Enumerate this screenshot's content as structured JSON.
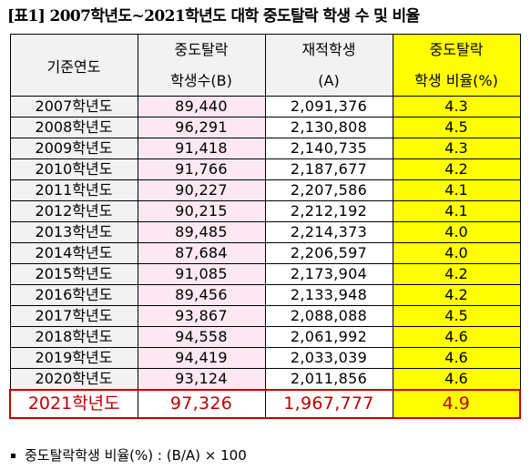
{
  "title": "[표1] 2007학년도~2021학년도 대학 중도탈락 학생 수 및 비율",
  "headers": {
    "year": "기준연도",
    "dropout_top": "중도탈락",
    "dropout_bottom": "학생수(B)",
    "enrolled_top": "재적학생",
    "enrolled_bottom": "(A)",
    "ratio_top": "중도탈락",
    "ratio_bottom": "학생 비율(%)"
  },
  "rows": [
    {
      "year": "2007학년도",
      "dropout": "89,440",
      "enrolled": "2,091,376",
      "ratio": "4.3"
    },
    {
      "year": "2008학년도",
      "dropout": "96,291",
      "enrolled": "2,130,808",
      "ratio": "4.5"
    },
    {
      "year": "2009학년도",
      "dropout": "91,418",
      "enrolled": "2,140,735",
      "ratio": "4.3"
    },
    {
      "year": "2010학년도",
      "dropout": "91,766",
      "enrolled": "2,187,677",
      "ratio": "4.2"
    },
    {
      "year": "2011학년도",
      "dropout": "90,227",
      "enrolled": "2,207,586",
      "ratio": "4.1"
    },
    {
      "year": "2012학년도",
      "dropout": "90,215",
      "enrolled": "2,212,192",
      "ratio": "4.1"
    },
    {
      "year": "2013학년도",
      "dropout": "89,485",
      "enrolled": "2,214,373",
      "ratio": "4.0"
    },
    {
      "year": "2014학년도",
      "dropout": "87,684",
      "enrolled": "2,206,597",
      "ratio": "4.0"
    },
    {
      "year": "2015학년도",
      "dropout": "91,085",
      "enrolled": "2,173,904",
      "ratio": "4.2"
    },
    {
      "year": "2016학년도",
      "dropout": "89,456",
      "enrolled": "2,133,948",
      "ratio": "4.2"
    },
    {
      "year": "2017학년도",
      "dropout": "93,867",
      "enrolled": "2,088,088",
      "ratio": "4.5"
    },
    {
      "year": "2018학년도",
      "dropout": "94,558",
      "enrolled": "2,061,992",
      "ratio": "4.6"
    },
    {
      "year": "2019학년도",
      "dropout": "94,419",
      "enrolled": "2,033,039",
      "ratio": "4.6"
    },
    {
      "year": "2020학년도",
      "dropout": "93,124",
      "enrolled": "2,011,856",
      "ratio": "4.6"
    }
  ],
  "final_row": {
    "year": "2021학년도",
    "dropout": "97,326",
    "enrolled": "1,967,777",
    "ratio": "4.9"
  },
  "footnote": "중도탈락학생 비율(%) : (B/A) × 100",
  "colors": {
    "header_bg": "#f2f2f2",
    "dropout_bg": "#fbe8f1",
    "ratio_bg": "#ffff00",
    "highlight_red": "#c00000"
  }
}
